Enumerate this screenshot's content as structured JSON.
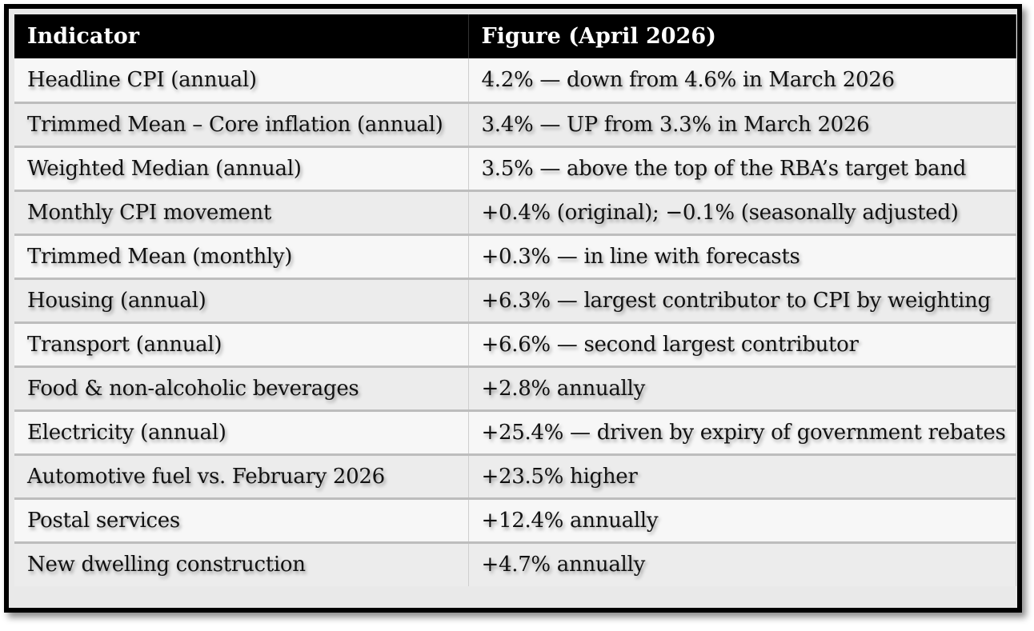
{
  "table": {
    "headers": [
      "Indicator",
      "Figure (April 2026)"
    ],
    "rows": [
      [
        "Headline CPI (annual)",
        "4.2% — down from 4.6% in March 2026"
      ],
      [
        "Trimmed Mean – Core inflation (annual)",
        "3.4% — UP from 3.3% in March 2026"
      ],
      [
        "Weighted Median (annual)",
        "3.5% — above the top of the RBA’s target band"
      ],
      [
        "Monthly CPI movement",
        "+0.4% (original); −0.1% (seasonally adjusted)"
      ],
      [
        "Trimmed Mean (monthly)",
        "+0.3% — in line with forecasts"
      ],
      [
        "Housing (annual)",
        "+6.3% — largest contributor to CPI by weighting"
      ],
      [
        "Transport (annual)",
        "+6.6% — second largest contributor"
      ],
      [
        "Food & non-alcoholic beverages",
        "+2.8% annually"
      ],
      [
        "Electricity (annual)",
        "+25.4% — driven by expiry of government rebates"
      ],
      [
        "Automotive fuel vs. February 2026",
        "+23.5% higher"
      ],
      [
        "Postal services",
        "+12.4% annually"
      ],
      [
        "New dwelling construction",
        "+4.7% annually"
      ]
    ]
  }
}
